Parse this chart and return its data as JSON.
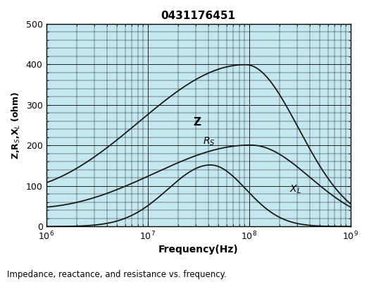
{
  "title": "0431176451",
  "xlabel": "Frequency(Hz)",
  "ylabel": "Z,R$_S$,X$_L$ (ohm)",
  "subtitle": "Impedance, reactance, and resistance vs. frequency.",
  "background_color": "#c5e8f0",
  "xlim_log": [
    6,
    9
  ],
  "ylim": [
    0,
    500
  ],
  "yticks": [
    0,
    100,
    200,
    300,
    400,
    500
  ],
  "curve_color": "#1a1a1a",
  "label_Z": "Z",
  "label_Rs": "R$_S$",
  "label_XL": "X$_L$",
  "figsize": [
    5.24,
    4.0
  ],
  "dpi": 100
}
